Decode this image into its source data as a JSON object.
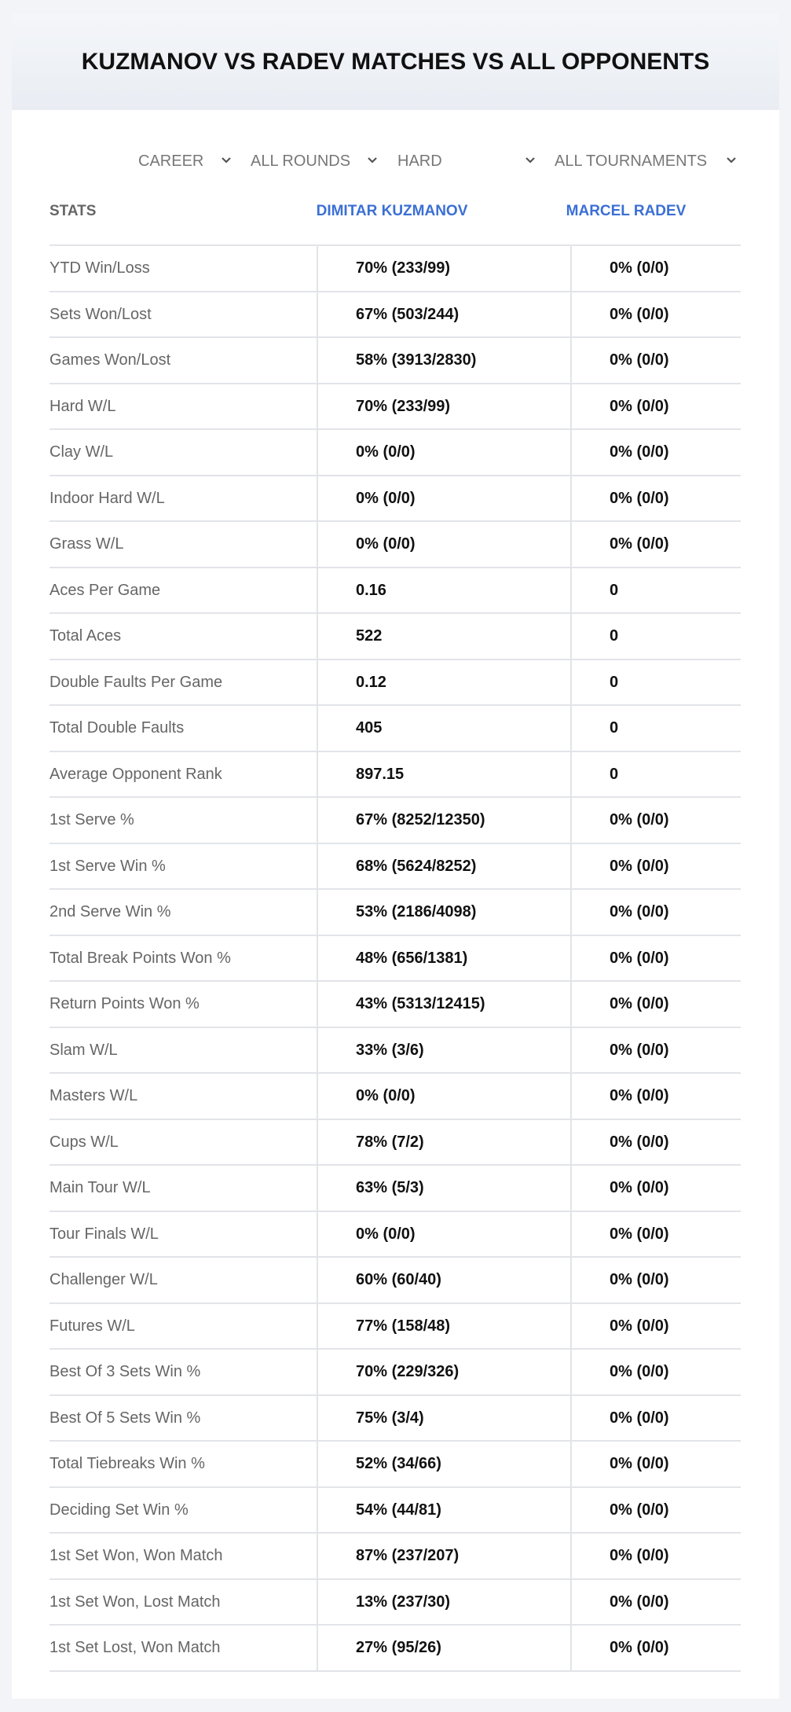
{
  "header": {
    "title": "KUZMANOV VS RADEV MATCHES VS ALL OPPONENTS"
  },
  "filters": [
    "CAREER",
    "ALL ROUNDS",
    "HARD",
    "ALL TOURNAMENTS"
  ],
  "table": {
    "columns": [
      "STATS",
      "DIMITAR KUZMANOV",
      "MARCEL RADEV"
    ],
    "rows": [
      [
        "YTD Win/Loss",
        "70% (233/99)",
        "0% (0/0)"
      ],
      [
        "Sets Won/Lost",
        "67% (503/244)",
        "0% (0/0)"
      ],
      [
        "Games Won/Lost",
        "58% (3913/2830)",
        "0% (0/0)"
      ],
      [
        "Hard W/L",
        "70% (233/99)",
        "0% (0/0)"
      ],
      [
        "Clay W/L",
        "0% (0/0)",
        "0% (0/0)"
      ],
      [
        "Indoor Hard W/L",
        "0% (0/0)",
        "0% (0/0)"
      ],
      [
        "Grass W/L",
        "0% (0/0)",
        "0% (0/0)"
      ],
      [
        "Aces Per Game",
        "0.16",
        "0"
      ],
      [
        "Total Aces",
        "522",
        "0"
      ],
      [
        "Double Faults Per Game",
        "0.12",
        "0"
      ],
      [
        "Total Double Faults",
        "405",
        "0"
      ],
      [
        "Average Opponent Rank",
        "897.15",
        "0"
      ],
      [
        "1st Serve %",
        "67% (8252/12350)",
        "0% (0/0)"
      ],
      [
        "1st Serve Win %",
        "68% (5624/8252)",
        "0% (0/0)"
      ],
      [
        "2nd Serve Win %",
        "53% (2186/4098)",
        "0% (0/0)"
      ],
      [
        "Total Break Points Won %",
        "48% (656/1381)",
        "0% (0/0)"
      ],
      [
        "Return Points Won %",
        "43% (5313/12415)",
        "0% (0/0)"
      ],
      [
        "Slam W/L",
        "33% (3/6)",
        "0% (0/0)"
      ],
      [
        "Masters W/L",
        "0% (0/0)",
        "0% (0/0)"
      ],
      [
        "Cups W/L",
        "78% (7/2)",
        "0% (0/0)"
      ],
      [
        "Main Tour W/L",
        "63% (5/3)",
        "0% (0/0)"
      ],
      [
        "Tour Finals W/L",
        "0% (0/0)",
        "0% (0/0)"
      ],
      [
        "Challenger W/L",
        "60% (60/40)",
        "0% (0/0)"
      ],
      [
        "Futures W/L",
        "77% (158/48)",
        "0% (0/0)"
      ],
      [
        "Best Of 3 Sets Win %",
        "70% (229/326)",
        "0% (0/0)"
      ],
      [
        "Best Of 5 Sets Win %",
        "75% (3/4)",
        "0% (0/0)"
      ],
      [
        "Total Tiebreaks Win %",
        "52% (34/66)",
        "0% (0/0)"
      ],
      [
        "Deciding Set Win %",
        "54% (44/81)",
        "0% (0/0)"
      ],
      [
        "1st Set Won, Won Match",
        "87% (237/207)",
        "0% (0/0)"
      ],
      [
        "1st Set Won, Lost Match",
        "13% (237/30)",
        "0% (0/0)"
      ],
      [
        "1st Set Lost, Won Match",
        "27% (95/26)",
        "0% (0/0)"
      ]
    ]
  }
}
